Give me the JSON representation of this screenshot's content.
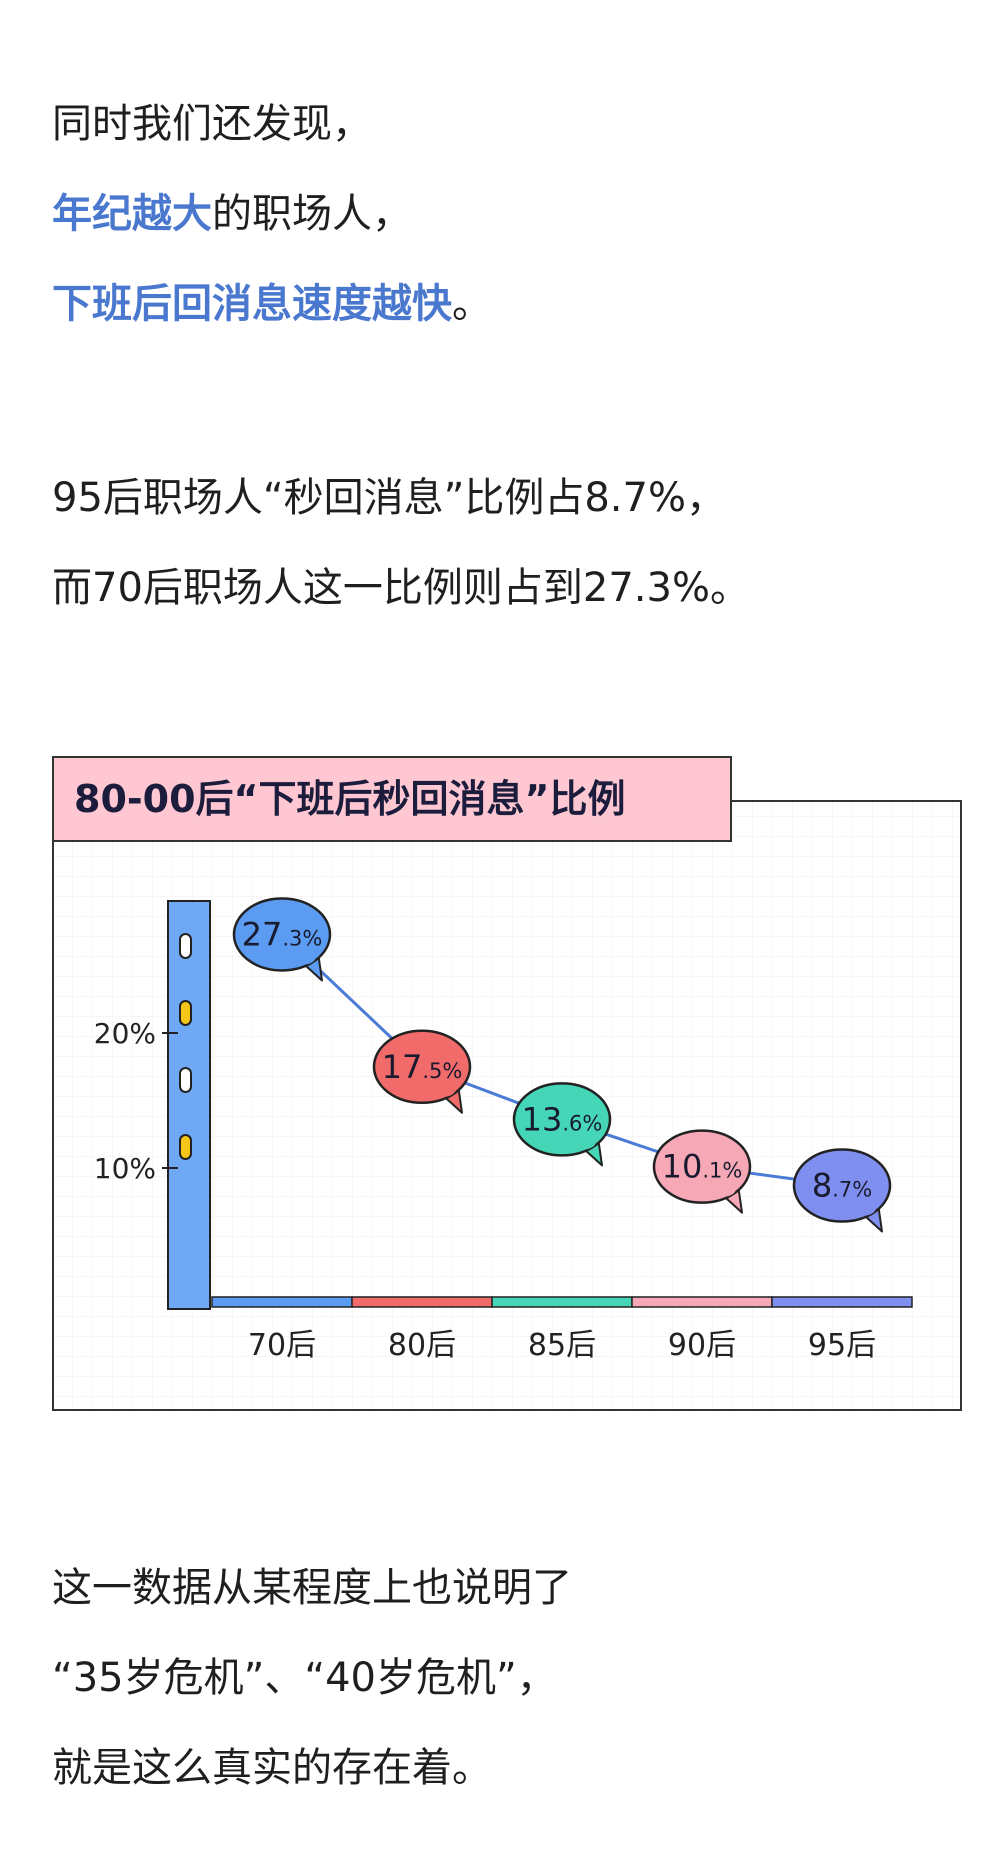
{
  "text": {
    "line1": "同时我们还发现，",
    "line2_accent": "年纪越大",
    "line2_rest": "的职场人，",
    "line3_accent": "下班后回消息速度越快",
    "line3_rest": "。",
    "line4": "95后职场人“秒回消息”比例占8.7%，",
    "line5": "而70后职场人这一比例则占到27.3%。",
    "line6": "这一数据从某程度上也说明了",
    "line7": "“35岁危机”、“40岁危机”，",
    "line8": "就是这么真实的存在着。"
  },
  "colors": {
    "accent": "#4a78cf",
    "title_bg": "#ffc7d1",
    "axis_bar": "#6fa8f5",
    "line": "#4a7bd6"
  },
  "chart_data": {
    "type": "line",
    "title": "80-00后“下班后秒回消息”比例",
    "categories": [
      "70后",
      "80后",
      "85后",
      "90后",
      "95后"
    ],
    "values": [
      27.3,
      17.5,
      13.6,
      10.1,
      8.7
    ],
    "value_labels": [
      {
        "int": "27",
        "dec": ".3%"
      },
      {
        "int": "17",
        "dec": ".5%"
      },
      {
        "int": "13",
        "dec": ".6%"
      },
      {
        "int": "10",
        "dec": ".1%"
      },
      {
        "int": "8",
        "dec": ".7%"
      }
    ],
    "bubble_colors": [
      "#5b9cf2",
      "#f26b6b",
      "#45d6b8",
      "#f7a8b6",
      "#7f8ff0"
    ],
    "yticks": [
      {
        "value": 10,
        "label": "10%"
      },
      {
        "value": 20,
        "label": "20%"
      }
    ],
    "ylim": [
      0,
      30
    ],
    "grid": true,
    "xlabel": "",
    "ylabel": ""
  }
}
